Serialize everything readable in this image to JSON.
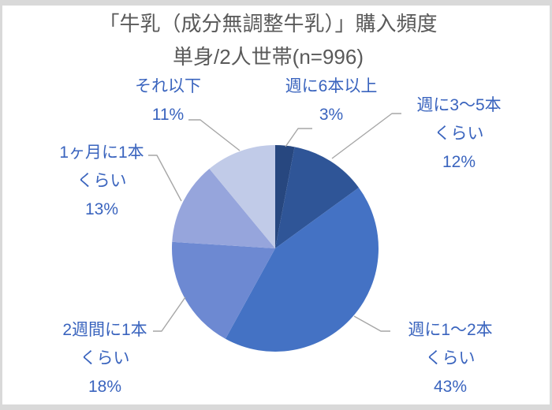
{
  "frame": {
    "border_color": "#d9d9d9",
    "background_color": "#ffffff"
  },
  "chart_data": {
    "type": "pie",
    "title": "「牛乳（成分無調整牛乳）」購入頻度",
    "subtitle": "単身/2人世帯(n=996)",
    "sample_size": 996,
    "title_color": "#595959",
    "label_color": "#3a64be",
    "leader_line_color": "#a6a6a6",
    "start_angle_deg": 0,
    "direction": "clockwise",
    "legend": "none",
    "labels_position": "outside-with-leader-lines",
    "slices": [
      {
        "category": "週に6本以上",
        "value": 3,
        "pct_label": "3%",
        "color": "#27477f",
        "label_lines": [
          "週に6本以上"
        ]
      },
      {
        "category": "週に3〜5本くらい",
        "value": 12,
        "pct_label": "12%",
        "color": "#2f5597",
        "label_lines": [
          "週に3〜5本",
          "くらい"
        ]
      },
      {
        "category": "週に1〜2本くらい",
        "value": 43,
        "pct_label": "43%",
        "color": "#4472c4",
        "label_lines": [
          "週に1〜2本",
          "くらい"
        ]
      },
      {
        "category": "2週間に1本くらい",
        "value": 18,
        "pct_label": "18%",
        "color": "#6d89d2",
        "label_lines": [
          "2週間に1本",
          "くらい"
        ]
      },
      {
        "category": "1ヶ月に1本くらい",
        "value": 13,
        "pct_label": "13%",
        "color": "#96a5dc",
        "label_lines": [
          "1ヶ月に1本",
          "くらい"
        ]
      },
      {
        "category": "それ以下",
        "value": 11,
        "pct_label": "11%",
        "color": "#c1cbe8",
        "label_lines": [
          "それ以下"
        ]
      }
    ]
  }
}
